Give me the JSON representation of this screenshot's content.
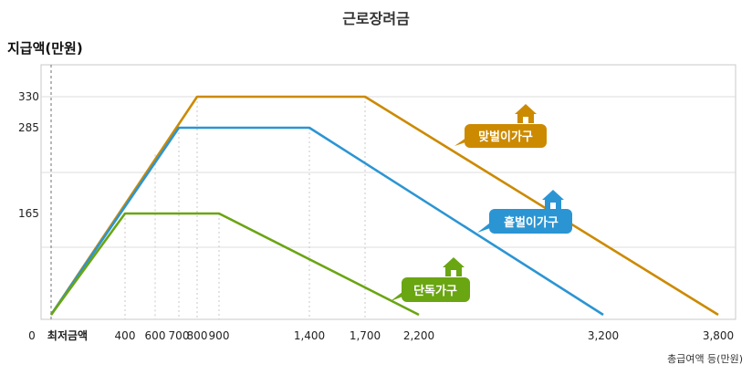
{
  "chart_data": {
    "type": "line",
    "title": "근로장려금",
    "ylabel": "지급액(만원)",
    "xlabel": "총급여액 등(만원)",
    "origin_label": "0",
    "min_amount_label": "최저금액",
    "xlim": [
      0,
      3800
    ],
    "ylim": [
      0,
      400
    ],
    "x_ticks": [
      400,
      600,
      700,
      800,
      900,
      1400,
      1700,
      2200,
      3200,
      3800
    ],
    "x_tick_labels": [
      "400",
      "600",
      "700",
      "800",
      "900",
      "1,400",
      "1,700",
      "2,200",
      "3,200",
      "3,800"
    ],
    "y_ticks": [
      165,
      285,
      330
    ],
    "y_tick_labels": [
      "165",
      "285",
      "330"
    ],
    "grid": true,
    "series": [
      {
        "name": "맞벌이가구",
        "color": "#cc8a00",
        "x": [
          0,
          800,
          1700,
          3800
        ],
        "y": [
          0,
          330,
          330,
          0
        ]
      },
      {
        "name": "홑벌이가구",
        "color": "#2b95d3",
        "x": [
          0,
          700,
          1400,
          3200
        ],
        "y": [
          0,
          285,
          285,
          0
        ]
      },
      {
        "name": "단독가구",
        "color": "#6aa512",
        "x": [
          0,
          400,
          900,
          2200
        ],
        "y": [
          0,
          165,
          165,
          0
        ]
      }
    ]
  }
}
